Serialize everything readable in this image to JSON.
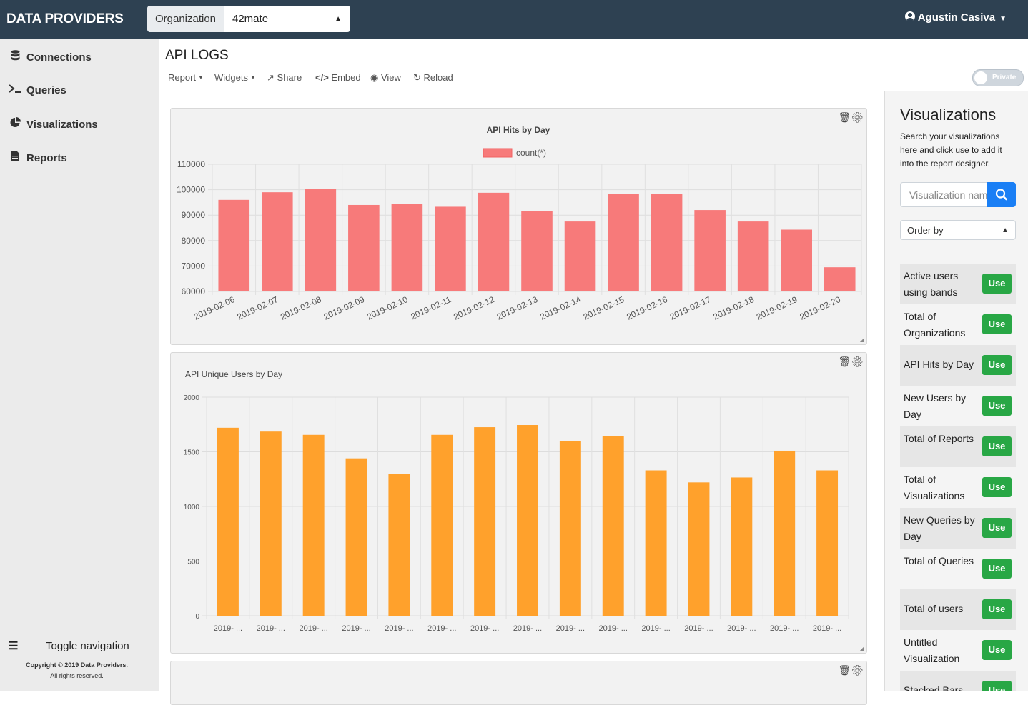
{
  "app": {
    "brand": "DATA PROVIDERS"
  },
  "org": {
    "label": "Organization",
    "value": "42mate"
  },
  "user": {
    "name": "Agustin Casiva"
  },
  "sidebar": {
    "items": [
      {
        "label": "Connections",
        "icon": "database-icon"
      },
      {
        "label": "Queries",
        "icon": "terminal-icon"
      },
      {
        "label": "Visualizations",
        "icon": "pie-chart-icon"
      },
      {
        "label": "Reports",
        "icon": "file-icon"
      }
    ],
    "toggle_label": "Toggle navigation",
    "copyright": "Copyright © 2019 Data Providers.",
    "rights": "All rights reserved."
  },
  "report": {
    "title": "API LOGS",
    "toolbar": {
      "report": "Report",
      "widgets": "Widgets",
      "share": "Share",
      "embed": "Embed",
      "view": "View",
      "reload": "Reload"
    },
    "private_label": "Private"
  },
  "chart_data": [
    {
      "type": "bar",
      "title": "API Hits by Day",
      "categories": [
        "2019-02-06",
        "2019-02-07",
        "2019-02-08",
        "2019-02-09",
        "2019-02-10",
        "2019-02-11",
        "2019-02-12",
        "2019-02-13",
        "2019-02-14",
        "2019-02-15",
        "2019-02-16",
        "2019-02-17",
        "2019-02-18",
        "2019-02-19",
        "2019-02-20"
      ],
      "series": [
        {
          "name": "count(*)",
          "color": "#f77a7a",
          "values": [
            96000,
            99000,
            100200,
            94000,
            94500,
            93300,
            98800,
            91500,
            87500,
            98400,
            98200,
            92000,
            87500,
            84300,
            69500
          ]
        }
      ],
      "yticks": [
        "110000",
        "100000",
        "90000",
        "80000",
        "70000",
        "60000"
      ],
      "ylim": [
        60000,
        110000
      ],
      "legend": "top-center",
      "grid": true
    },
    {
      "type": "bar",
      "title": "API Unique Users by Day",
      "categories": [
        "2019- ...",
        "2019- ...",
        "2019- ...",
        "2019- ...",
        "2019- ...",
        "2019- ...",
        "2019- ...",
        "2019- ...",
        "2019- ...",
        "2019- ...",
        "2019- ...",
        "2019- ...",
        "2019- ...",
        "2019- ...",
        "2019- ..."
      ],
      "series": [
        {
          "color": "#ffa12c",
          "values": [
            1720,
            1685,
            1655,
            1440,
            1300,
            1655,
            1725,
            1745,
            1595,
            1645,
            1330,
            1220,
            1265,
            1510,
            1330
          ]
        }
      ],
      "yticks": [
        "2000",
        "1500",
        "1000",
        "500",
        "0"
      ],
      "ylim": [
        0,
        2000
      ],
      "grid": true
    }
  ],
  "visualizations_panel": {
    "title": "Visualizations",
    "description": "Search your visualizations here and click use to add it into the report designer.",
    "search_placeholder": "Visualization name",
    "order_by": "Order by",
    "use_label": "Use",
    "items": [
      "Active users using bands",
      "Total of Organizations",
      "API Hits by Day",
      "New Users by Day",
      "Total of Reports",
      "Total of Visualizations",
      "New Queries by Day",
      "Total of Queries",
      "Total of users",
      "Untitled Visualization",
      "Stacked Bars"
    ]
  }
}
